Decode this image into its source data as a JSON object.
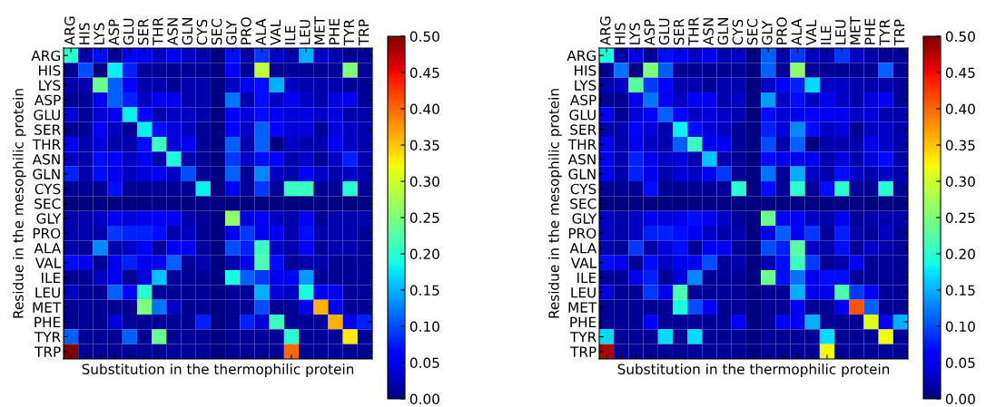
{
  "chart_data": [
    {
      "type": "heatmap",
      "xlabel": "Substitution in the thermophilic protein",
      "ylabel": "Residue in the mesophilic protein",
      "categories": [
        "ARG",
        "HIS",
        "LYS",
        "ASP",
        "GLU",
        "SER",
        "THR",
        "ASN",
        "GLN",
        "CYS",
        "SEC",
        "GLY",
        "PRO",
        "ALA",
        "VAL",
        "ILE",
        "LEU",
        "MET",
        "PHE",
        "TYR",
        "TRP"
      ],
      "y_categories": [
        "ARG",
        "HIS",
        "LYS",
        "ASP",
        "GLU",
        "SER",
        "THR",
        "ASN",
        "GLN",
        "CYS",
        "SEC",
        "GLY",
        "PRO",
        "ALA",
        "VAL",
        "ILE",
        "LEU",
        "MET",
        "PHE",
        "TYR",
        "TRP"
      ],
      "clim": [
        0,
        0.5
      ],
      "cticks": [
        {
          "value": 0,
          "label": "0.00"
        },
        {
          "value": 0.05,
          "label": "0.05"
        },
        {
          "value": 0.1,
          "label": "0.10"
        },
        {
          "value": 0.15,
          "label": "0.15"
        },
        {
          "value": 0.2,
          "label": "0.20"
        },
        {
          "value": 0.25,
          "label": "0.25"
        },
        {
          "value": 0.3,
          "label": "0.30"
        },
        {
          "value": 0.35,
          "label": "0.35"
        },
        {
          "value": 0.4,
          "label": "0.40"
        },
        {
          "value": 0.45,
          "label": "0.45"
        },
        {
          "value": 0.5,
          "label": "0.50"
        }
      ],
      "cells": [
        [
          0.2,
          0.02,
          0.07,
          0.01,
          0.05,
          0.05,
          0.03,
          0.05,
          0.03,
          0.02,
          0,
          0.07,
          0.02,
          0.09,
          0.03,
          0.02,
          0.15,
          0.03,
          0.02,
          0.01,
          0.01
        ],
        [
          0.01,
          0.1,
          0.0,
          0.18,
          0.08,
          0.01,
          0.01,
          0.01,
          0.01,
          0.01,
          0,
          0.06,
          0.01,
          0.29,
          0.01,
          0.01,
          0.01,
          0.01,
          0.01,
          0.25,
          0.01
        ],
        [
          0.02,
          0.02,
          0.24,
          0.11,
          0.06,
          0.02,
          0.02,
          0.01,
          0.02,
          0.02,
          0,
          0.03,
          0.05,
          0.07,
          0.15,
          0.03,
          0.02,
          0.02,
          0.02,
          0.01,
          0.01
        ],
        [
          0.01,
          0.01,
          0.05,
          0.11,
          0.08,
          0.03,
          0.05,
          0.05,
          0.02,
          0.02,
          0,
          0.12,
          0.02,
          0.07,
          0.03,
          0.05,
          0.03,
          0.02,
          0.04,
          0.05,
          0.01
        ],
        [
          0.04,
          0.01,
          0.04,
          0.05,
          0.18,
          0.06,
          0.02,
          0.03,
          0.03,
          0.02,
          0,
          0.06,
          0.04,
          0.07,
          0.05,
          0.04,
          0.04,
          0.03,
          0.04,
          0.02,
          0.02
        ],
        [
          0.01,
          0.01,
          0.06,
          0.03,
          0.01,
          0.18,
          0.07,
          0.04,
          0.03,
          0.01,
          0,
          0.06,
          0.03,
          0.11,
          0.06,
          0.04,
          0.04,
          0.01,
          0.04,
          0.03,
          0.02
        ],
        [
          0.05,
          0.02,
          0.04,
          0.02,
          0.02,
          0.07,
          0.21,
          0.04,
          0.05,
          0.01,
          0,
          0.11,
          0.02,
          0.11,
          0.0,
          0.03,
          0.02,
          0.02,
          0.05,
          0.03,
          0.02
        ],
        [
          0.03,
          0.02,
          0.07,
          0.06,
          0.03,
          0.05,
          0.02,
          0.19,
          0.02,
          0.01,
          0,
          0.09,
          0.03,
          0.07,
          0.06,
          0.02,
          0.03,
          0.01,
          0.03,
          0.08,
          0.02
        ],
        [
          0.08,
          0.02,
          0.07,
          0.05,
          0.03,
          0.04,
          0.05,
          0.03,
          0.1,
          0.01,
          0,
          0.11,
          0.01,
          0.13,
          0.03,
          0.02,
          0.05,
          0.03,
          0.02,
          0.03,
          0.02
        ],
        [
          0.01,
          0.01,
          0.01,
          0.07,
          0.01,
          0.01,
          0.01,
          0.01,
          0.01,
          0.18,
          0,
          0.05,
          0.01,
          0.09,
          0.01,
          0.21,
          0.21,
          0.01,
          0.01,
          0.2,
          0.01
        ],
        [
          0,
          0,
          0,
          0,
          0,
          0,
          0,
          0,
          0,
          0,
          0,
          0,
          0,
          0,
          0,
          0,
          0,
          0,
          0,
          0,
          0
        ],
        [
          0.02,
          0.02,
          0.03,
          0.05,
          0.04,
          0.05,
          0.06,
          0.05,
          0.02,
          0.01,
          0,
          0.26,
          0.04,
          0.06,
          0.03,
          0.02,
          0.05,
          0.01,
          0.02,
          0.02,
          0.02
        ],
        [
          0.02,
          0.02,
          0.02,
          0.09,
          0.08,
          0.08,
          0.07,
          0.02,
          0.03,
          0.01,
          0,
          0.05,
          0.09,
          0.05,
          0.05,
          0.02,
          0.07,
          0.02,
          0.02,
          0.02,
          0.01
        ],
        [
          0.02,
          0.01,
          0.13,
          0.02,
          0.03,
          0.06,
          0.01,
          0.05,
          0.05,
          0.01,
          0,
          0.1,
          0.08,
          0.21,
          0.03,
          0.02,
          0.06,
          0.01,
          0.02,
          0.02,
          0.01
        ],
        [
          0.07,
          0.05,
          0.01,
          0.05,
          0.08,
          0.05,
          0.05,
          0.11,
          0.01,
          0.02,
          0,
          0.02,
          0.05,
          0.22,
          0.07,
          0.01,
          0.02,
          0.02,
          0.01,
          0.01,
          0.01
        ],
        [
          0.01,
          0.01,
          0.03,
          0.05,
          0.01,
          0.04,
          0.16,
          0.01,
          0.01,
          0.01,
          0,
          0.19,
          0.11,
          0.09,
          0.05,
          0.06,
          0.14,
          0.01,
          0.01,
          0.01,
          0.01
        ],
        [
          0.03,
          0.01,
          0.01,
          0.11,
          0.06,
          0.2,
          0.01,
          0.01,
          0.01,
          0.01,
          0,
          0.01,
          0.01,
          0.15,
          0.04,
          0.03,
          0.19,
          0.06,
          0.05,
          0.01,
          0.01
        ],
        [
          0.01,
          0.01,
          0.01,
          0.01,
          0.01,
          0.25,
          0.12,
          0.03,
          0.01,
          0.01,
          0,
          0.01,
          0.01,
          0.1,
          0.01,
          0.01,
          0.05,
          0.36,
          0.06,
          0.01,
          0.01
        ],
        [
          0.01,
          0.01,
          0.01,
          0.04,
          0.01,
          0.01,
          0.01,
          0.01,
          0.01,
          0.08,
          0,
          0.01,
          0.08,
          0.04,
          0.21,
          0.01,
          0.01,
          0.01,
          0.36,
          0.05,
          0.08
        ],
        [
          0.11,
          0.01,
          0.01,
          0.01,
          0.11,
          0.01,
          0.24,
          0.01,
          0.01,
          0.01,
          0,
          0.01,
          0.01,
          0.01,
          0.01,
          0.2,
          0.01,
          0.01,
          0.01,
          0.33,
          0.01
        ],
        [
          0.5,
          0.01,
          0.01,
          0.01,
          0.01,
          0.01,
          0.01,
          0.01,
          0.01,
          0.01,
          0,
          0.01,
          0.01,
          0.01,
          0.01,
          0.4,
          0.01,
          0.01,
          0.01,
          0.01,
          0.01
        ]
      ]
    },
    {
      "type": "heatmap",
      "xlabel": "Substitution in the thermophilic protein",
      "ylabel": "Residue in the mesophilic protein",
      "categories": [
        "ARG",
        "HIS",
        "LYS",
        "ASP",
        "GLU",
        "SER",
        "THR",
        "ASN",
        "GLN",
        "CYS",
        "SEC",
        "GLY",
        "PRO",
        "ALA",
        "VAL",
        "ILE",
        "LEU",
        "MET",
        "PHE",
        "TYR",
        "TRP"
      ],
      "y_categories": [
        "ARG",
        "HIS",
        "LYS",
        "ASP",
        "GLU",
        "SER",
        "THR",
        "ASN",
        "GLN",
        "CYS",
        "SEC",
        "GLY",
        "PRO",
        "ALA",
        "VAL",
        "ILE",
        "LEU",
        "MET",
        "PHE",
        "TYR",
        "TRP"
      ],
      "clim": [
        0,
        0.5
      ],
      "cticks": [
        {
          "value": 0,
          "label": "0.00"
        },
        {
          "value": 0.05,
          "label": "0.05"
        },
        {
          "value": 0.1,
          "label": "0.10"
        },
        {
          "value": 0.15,
          "label": "0.15"
        },
        {
          "value": 0.2,
          "label": "0.20"
        },
        {
          "value": 0.25,
          "label": "0.25"
        },
        {
          "value": 0.3,
          "label": "0.30"
        },
        {
          "value": 0.35,
          "label": "0.35"
        },
        {
          "value": 0.4,
          "label": "0.40"
        },
        {
          "value": 0.45,
          "label": "0.45"
        },
        {
          "value": 0.5,
          "label": "0.50"
        }
      ],
      "cells": [
        [
          0.19,
          0.02,
          0.05,
          0.01,
          0.07,
          0.05,
          0.03,
          0.05,
          0.02,
          0.03,
          0,
          0.11,
          0.02,
          0.09,
          0.03,
          0.02,
          0.09,
          0.03,
          0.02,
          0.01,
          0.01
        ],
        [
          0.01,
          0.12,
          0.0,
          0.25,
          0.11,
          0.01,
          0.01,
          0.01,
          0.01,
          0.01,
          0,
          0.11,
          0.01,
          0.26,
          0.01,
          0.01,
          0.01,
          0.01,
          0.01,
          0.11,
          0.01
        ],
        [
          0.02,
          0.03,
          0.23,
          0.09,
          0.06,
          0.02,
          0.02,
          0.01,
          0.02,
          0.02,
          0,
          0.03,
          0.06,
          0.08,
          0.17,
          0.03,
          0.03,
          0.02,
          0.02,
          0.02,
          0.01
        ],
        [
          0.01,
          0.01,
          0.05,
          0.12,
          0.05,
          0.03,
          0.05,
          0.05,
          0.02,
          0.03,
          0,
          0.14,
          0.03,
          0.07,
          0.03,
          0.05,
          0.03,
          0.02,
          0.04,
          0.05,
          0.01
        ],
        [
          0.05,
          0.01,
          0.04,
          0.06,
          0.11,
          0.06,
          0.03,
          0.04,
          0.03,
          0.02,
          0,
          0.07,
          0.04,
          0.05,
          0.06,
          0.05,
          0.05,
          0.03,
          0.04,
          0.02,
          0.02
        ],
        [
          0.02,
          0.02,
          0.06,
          0.04,
          0.02,
          0.18,
          0.07,
          0.04,
          0.03,
          0.01,
          0,
          0.08,
          0.04,
          0.13,
          0.07,
          0.03,
          0.04,
          0.01,
          0.03,
          0.03,
          0.02
        ],
        [
          0.05,
          0.02,
          0.05,
          0.03,
          0.02,
          0.11,
          0.21,
          0.05,
          0.05,
          0.01,
          0,
          0.1,
          0.02,
          0.11,
          0.0,
          0.02,
          0.02,
          0.02,
          0.05,
          0.03,
          0.02
        ],
        [
          0.05,
          0.02,
          0.08,
          0.05,
          0.03,
          0.04,
          0.02,
          0.16,
          0.02,
          0.01,
          0,
          0.07,
          0.05,
          0.05,
          0.05,
          0.02,
          0.04,
          0.02,
          0.04,
          0.07,
          0.02
        ],
        [
          0.05,
          0.02,
          0.08,
          0.05,
          0.02,
          0.04,
          0.03,
          0.05,
          0.09,
          0.01,
          0,
          0.12,
          0.01,
          0.15,
          0.03,
          0.02,
          0.07,
          0.03,
          0.02,
          0.03,
          0.02
        ],
        [
          0.01,
          0.01,
          0.01,
          0.07,
          0.01,
          0.01,
          0.01,
          0.01,
          0.01,
          0.2,
          0,
          0.07,
          0.01,
          0.2,
          0.01,
          0.07,
          0.2,
          0.01,
          0.01,
          0.2,
          0.01
        ],
        [
          0,
          0,
          0,
          0,
          0,
          0,
          0,
          0,
          0,
          0,
          0,
          0,
          0,
          0,
          0,
          0,
          0,
          0,
          0,
          0,
          0
        ],
        [
          0.03,
          0.02,
          0.03,
          0.05,
          0.04,
          0.05,
          0.07,
          0.05,
          0.03,
          0.01,
          0,
          0.24,
          0.05,
          0.06,
          0.03,
          0.02,
          0.05,
          0.01,
          0.02,
          0.02,
          0.02
        ],
        [
          0.03,
          0.02,
          0.03,
          0.08,
          0.08,
          0.07,
          0.05,
          0.03,
          0.02,
          0.02,
          0,
          0.05,
          0.11,
          0.05,
          0.09,
          0.01,
          0.08,
          0.02,
          0.01,
          0.03,
          0.01
        ],
        [
          0.02,
          0.01,
          0.09,
          0.02,
          0.04,
          0.07,
          0.01,
          0.05,
          0.05,
          0.01,
          0,
          0.1,
          0.08,
          0.23,
          0.03,
          0.02,
          0.07,
          0.01,
          0.03,
          0.02,
          0.01
        ],
        [
          0.07,
          0.05,
          0.01,
          0.07,
          0.03,
          0.05,
          0.05,
          0.1,
          0.01,
          0.02,
          0,
          0.02,
          0.07,
          0.21,
          0.09,
          0.01,
          0.02,
          0.05,
          0.01,
          0.01,
          0.01
        ],
        [
          0.01,
          0.01,
          0.05,
          0.08,
          0.01,
          0.04,
          0.13,
          0.01,
          0.01,
          0.01,
          0,
          0.24,
          0.07,
          0.12,
          0.05,
          0.07,
          0.07,
          0.01,
          0.01,
          0.01,
          0.01
        ],
        [
          0.04,
          0.01,
          0.01,
          0.09,
          0.05,
          0.22,
          0.01,
          0.01,
          0.01,
          0.01,
          0,
          0.01,
          0.01,
          0.15,
          0.05,
          0.05,
          0.22,
          0.09,
          0.05,
          0.01,
          0.01
        ],
        [
          0.01,
          0.01,
          0.01,
          0.01,
          0.01,
          0.19,
          0.1,
          0.05,
          0.01,
          0.01,
          0,
          0.01,
          0.01,
          0.05,
          0.01,
          0.01,
          0.05,
          0.41,
          0.11,
          0.01,
          0.01
        ],
        [
          0.01,
          0.01,
          0.01,
          0.06,
          0.01,
          0.01,
          0.01,
          0.01,
          0.01,
          0.06,
          0,
          0.01,
          0.06,
          0.06,
          0.15,
          0.01,
          0.01,
          0.01,
          0.31,
          0.06,
          0.15
        ],
        [
          0.17,
          0.01,
          0.01,
          0.01,
          0.17,
          0.01,
          0.17,
          0.01,
          0.01,
          0.01,
          0,
          0.01,
          0.01,
          0.01,
          0.01,
          0.17,
          0.01,
          0.01,
          0.01,
          0.32,
          0.01
        ],
        [
          0.48,
          0.01,
          0.01,
          0.01,
          0.01,
          0.01,
          0.01,
          0.01,
          0.01,
          0.01,
          0,
          0.01,
          0.01,
          0.01,
          0.01,
          0.32,
          0.01,
          0.01,
          0.01,
          0.01,
          0.01
        ]
      ]
    }
  ]
}
